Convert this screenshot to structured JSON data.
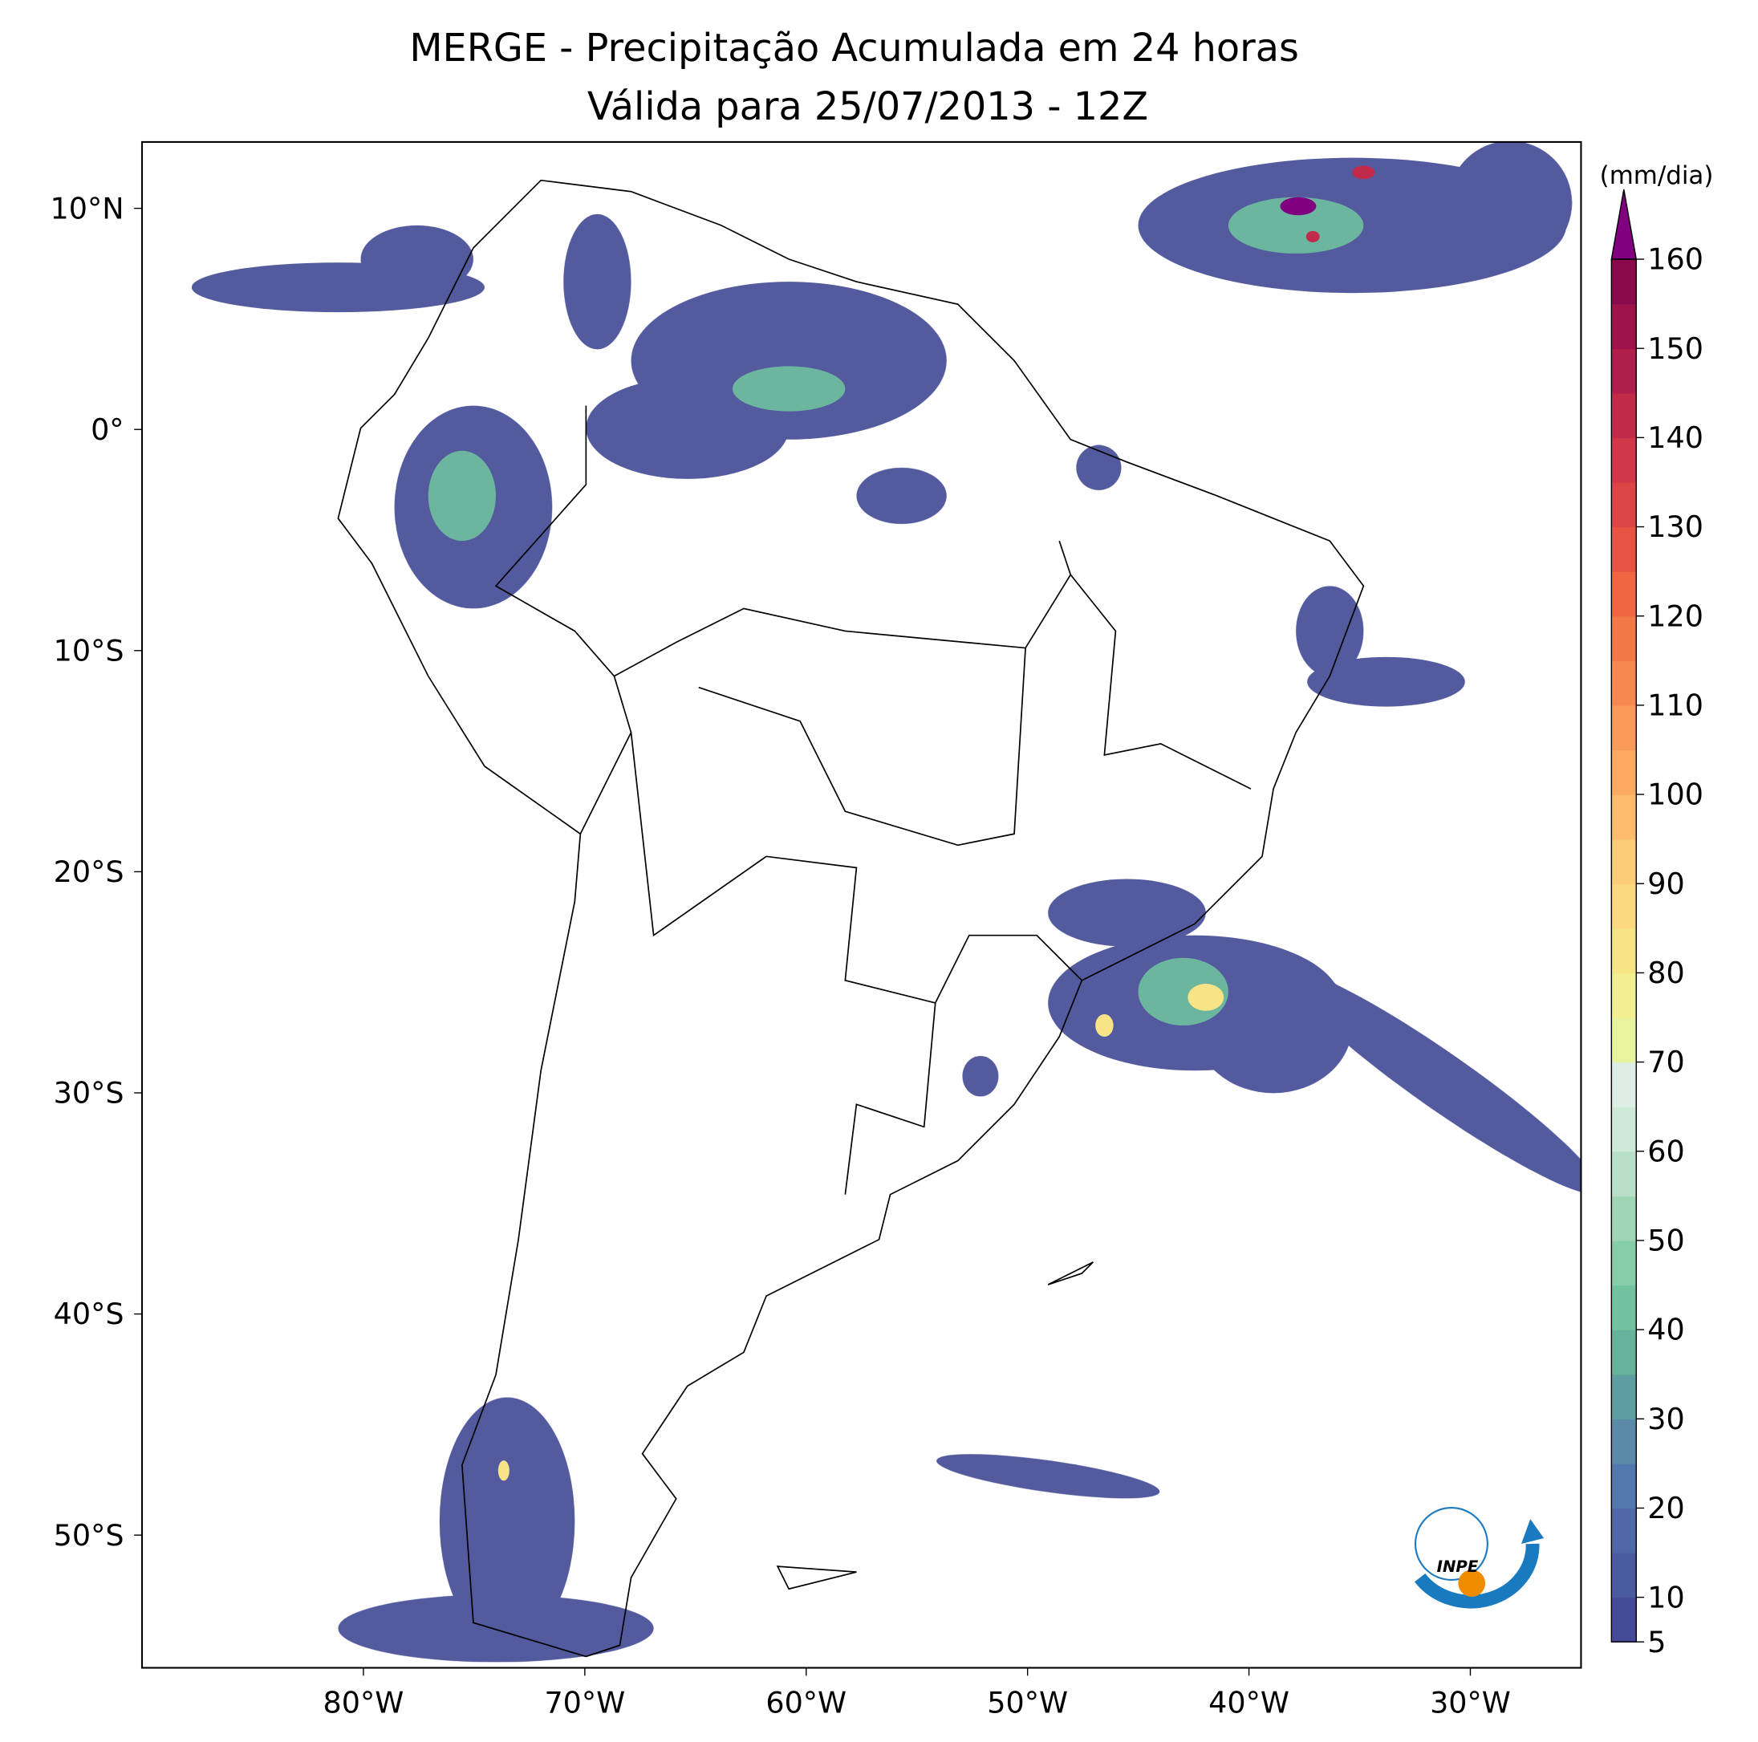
{
  "chart_data": {
    "type": "map",
    "title": "MERGE - Precipitação Acumulada em 24 horas",
    "subtitle": "Válida para 25/07/2013 - 12Z",
    "xlim": [
      -90,
      -25
    ],
    "ylim": [
      -56,
      13
    ],
    "xticks": [
      {
        "value": -80,
        "label": "80°W"
      },
      {
        "value": -70,
        "label": "70°W"
      },
      {
        "value": -60,
        "label": "60°W"
      },
      {
        "value": -50,
        "label": "50°W"
      },
      {
        "value": -40,
        "label": "40°W"
      },
      {
        "value": -30,
        "label": "30°W"
      }
    ],
    "yticks": [
      {
        "value": 10,
        "label": "10°N"
      },
      {
        "value": 0,
        "label": "0°"
      },
      {
        "value": -10,
        "label": "10°S"
      },
      {
        "value": -20,
        "label": "20°S"
      },
      {
        "value": -30,
        "label": "30°S"
      },
      {
        "value": -40,
        "label": "40°S"
      },
      {
        "value": -50,
        "label": "50°S"
      }
    ],
    "colorbar": {
      "label": "(mm/dia)",
      "lim": [
        5,
        160
      ],
      "ticks": [
        5,
        10,
        20,
        30,
        40,
        50,
        60,
        70,
        80,
        90,
        100,
        110,
        120,
        130,
        140,
        150,
        160
      ],
      "colors": [
        "#454a96",
        "#4a5a9e",
        "#4f68a6",
        "#5378ad",
        "#5a8aa8",
        "#5f9ea0",
        "#66b29b",
        "#73c29f",
        "#88cdaa",
        "#a0d6b6",
        "#b8e0c8",
        "#cde9d8",
        "#dceee6",
        "#e8f3a0",
        "#f1ef8f",
        "#f7e487",
        "#fbd97f",
        "#fdcc76",
        "#fdbb6c",
        "#fcaa62",
        "#fa9a58",
        "#f78950",
        "#f37848",
        "#ee6644",
        "#e65543",
        "#dc4545",
        "#d03748",
        "#c12b4a",
        "#b01e4b",
        "#9e134b",
        "#8a0a4c"
      ],
      "extend_color": "#800080"
    },
    "logo_text": "INPE"
  }
}
